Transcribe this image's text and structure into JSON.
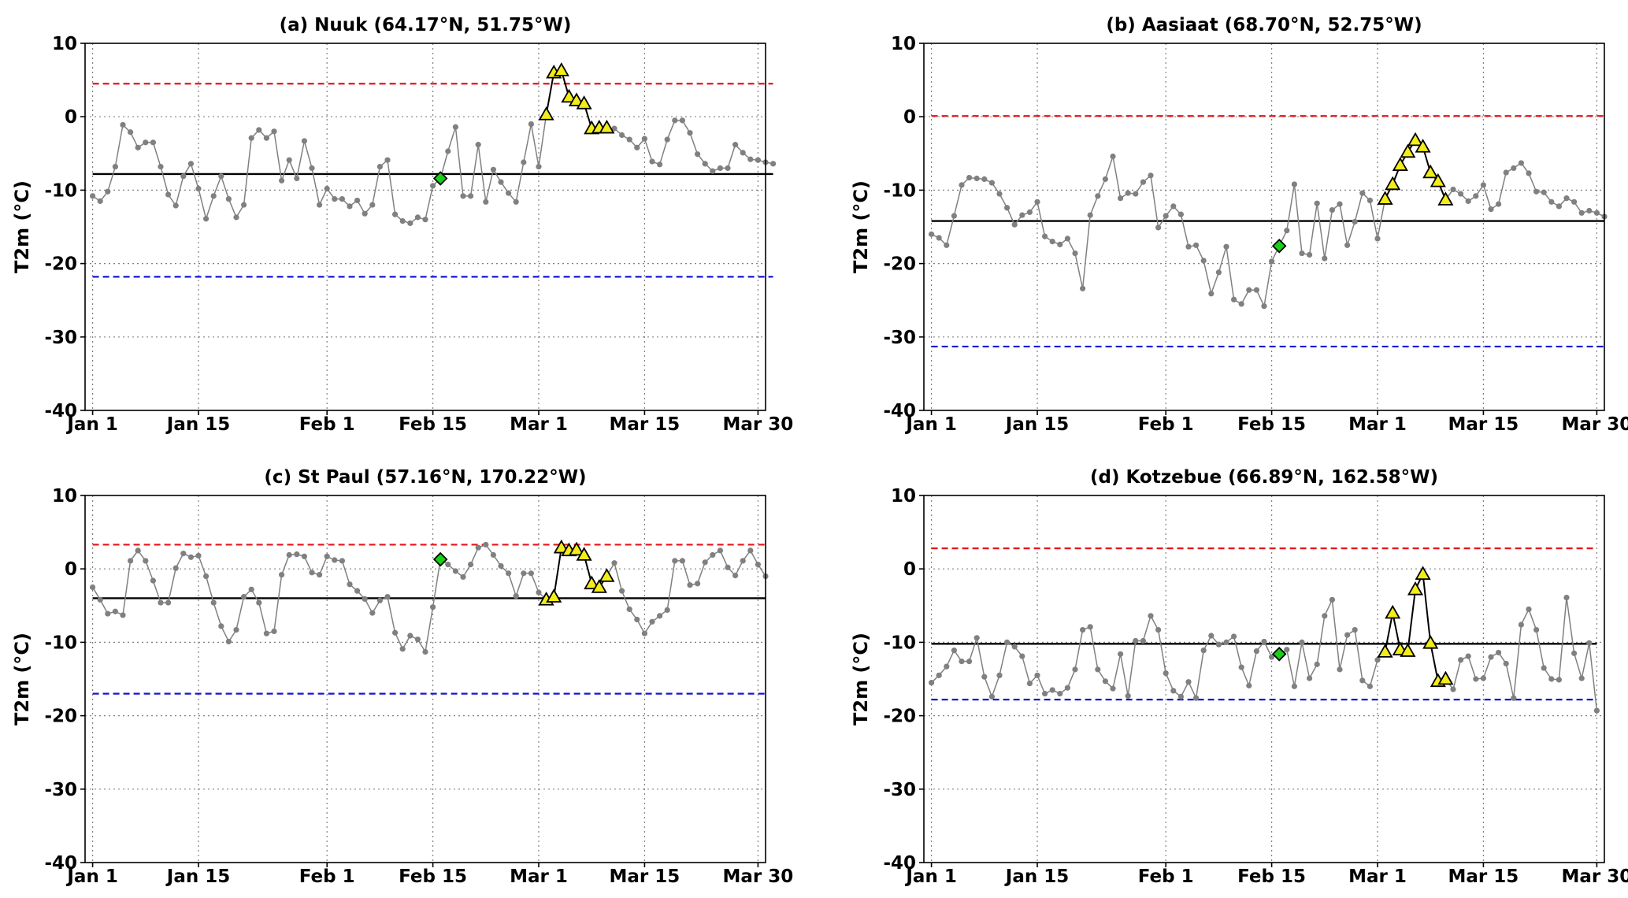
{
  "colors": {
    "series": "#808080",
    "mean": "#000000",
    "upper": "#e8141a",
    "lower": "#1515d6",
    "triangle_fill": "#f2ec1a",
    "diamond_fill": "#19d019",
    "grid": "#808080"
  },
  "chart_data": [
    {
      "type": "line",
      "title": "(a) Nuuk (64.17°N, 51.75°W)",
      "ylabel": "T2m (°C)",
      "ylim": [
        -40,
        10
      ],
      "yticks": [
        10,
        0,
        -10,
        -20,
        -30,
        -40
      ],
      "xlim": [
        0,
        90
      ],
      "xticks": [
        {
          "day": 1,
          "label": "Jan 1"
        },
        {
          "day": 15,
          "label": "Jan 15"
        },
        {
          "day": 32,
          "label": "Feb 1"
        },
        {
          "day": 46,
          "label": "Feb 15"
        },
        {
          "day": 60,
          "label": "Mar 1"
        },
        {
          "day": 74,
          "label": "Mar 15"
        },
        {
          "day": 89,
          "label": "Mar 30"
        }
      ],
      "grid": true,
      "mean": -7.8,
      "upper": 4.5,
      "lower": -21.8,
      "x_start": 1,
      "values": [
        -10.8,
        -11.5,
        -10.2,
        -6.8,
        -1.1,
        -2.1,
        -4.2,
        -3.5,
        -3.5,
        -6.8,
        -10.6,
        -12.1,
        -8.1,
        -6.4,
        -9.8,
        -13.9,
        -10.8,
        -8.1,
        -11.2,
        -13.7,
        -12.0,
        -2.9,
        -1.8,
        -2.9,
        -2.0,
        -8.7,
        -5.9,
        -8.4,
        -3.3,
        -7.0,
        -12.0,
        -9.8,
        -11.2,
        -11.2,
        -12.2,
        -11.4,
        -13.2,
        -12.0,
        -6.8,
        -5.9,
        -13.3,
        -14.2,
        -14.5,
        -13.7,
        -14.0,
        -9.4,
        -8.4,
        -4.7,
        -1.4,
        -10.8,
        -10.8,
        -3.8,
        -11.6,
        -7.2,
        -8.9,
        -10.4,
        -11.6,
        -6.2,
        -1.0,
        -6.8,
        0.3,
        6.0,
        6.3,
        2.7,
        2.2,
        1.8,
        -1.6,
        -1.5,
        -1.5,
        -1.6,
        -2.5,
        -3.1,
        -4.2,
        -3.0,
        -6.1,
        -6.5,
        -3.1,
        -0.5,
        -0.5,
        -2.2,
        -5.1,
        -6.4,
        -7.4,
        -7.0,
        -7.0,
        -3.8,
        -4.9,
        -5.8,
        -5.9,
        -6.2,
        -6.4
      ],
      "triangles": [
        {
          "day": 61,
          "value": 0.3
        },
        {
          "day": 62,
          "value": 6.0
        },
        {
          "day": 63,
          "value": 6.3
        },
        {
          "day": 64,
          "value": 2.7
        },
        {
          "day": 65,
          "value": 2.2
        },
        {
          "day": 66,
          "value": 1.8
        },
        {
          "day": 67,
          "value": -1.6
        },
        {
          "day": 68,
          "value": -1.5
        },
        {
          "day": 69,
          "value": -1.5
        }
      ],
      "diamond": {
        "day": 47,
        "value": -8.4
      }
    },
    {
      "type": "line",
      "title": "(b) Aasiaat (68.70°N, 52.75°W)",
      "ylabel": "T2m (°C)",
      "ylim": [
        -40,
        10
      ],
      "yticks": [
        10,
        0,
        -10,
        -20,
        -30,
        -40
      ],
      "xlim": [
        0,
        90
      ],
      "xticks": [
        {
          "day": 1,
          "label": "Jan 1"
        },
        {
          "day": 15,
          "label": "Jan 15"
        },
        {
          "day": 32,
          "label": "Feb 1"
        },
        {
          "day": 46,
          "label": "Feb 15"
        },
        {
          "day": 60,
          "label": "Mar 1"
        },
        {
          "day": 74,
          "label": "Mar 15"
        },
        {
          "day": 89,
          "label": "Mar 30"
        }
      ],
      "grid": true,
      "mean": -14.2,
      "upper": 0.1,
      "lower": -31.3,
      "x_start": 1,
      "values": [
        -16.0,
        -16.5,
        -17.5,
        -13.5,
        -9.3,
        -8.3,
        -8.4,
        -8.5,
        -9.0,
        -10.5,
        -12.4,
        -14.7,
        -13.4,
        -13.0,
        -11.6,
        -16.3,
        -17.0,
        -17.4,
        -16.6,
        -18.6,
        -23.4,
        -13.4,
        -10.8,
        -8.5,
        -5.4,
        -11.1,
        -10.4,
        -10.5,
        -8.9,
        -8.0,
        -15.1,
        -13.5,
        -12.2,
        -13.3,
        -17.7,
        -17.5,
        -19.6,
        -24.1,
        -21.2,
        -17.7,
        -24.9,
        -25.5,
        -23.6,
        -23.6,
        -25.8,
        -19.7,
        -17.6,
        -15.5,
        -9.2,
        -18.6,
        -18.8,
        -11.8,
        -19.3,
        -12.7,
        -11.9,
        -17.5,
        -14.3,
        -10.4,
        -11.4,
        -16.6,
        -11.2,
        -9.2,
        -6.6,
        -4.8,
        -3.2,
        -4.1,
        -7.6,
        -8.8,
        -11.3,
        -9.9,
        -10.5,
        -11.5,
        -10.8,
        -9.3,
        -12.6,
        -11.9,
        -7.6,
        -7.0,
        -6.3,
        -7.7,
        -10.2,
        -10.3,
        -11.6,
        -12.2,
        -11.1,
        -11.6,
        -13.1,
        -12.8,
        -13.1,
        -13.6
      ],
      "triangles": [
        {
          "day": 61,
          "value": -11.2
        },
        {
          "day": 62,
          "value": -9.2
        },
        {
          "day": 63,
          "value": -6.6
        },
        {
          "day": 64,
          "value": -4.8
        },
        {
          "day": 65,
          "value": -3.2
        },
        {
          "day": 66,
          "value": -4.1
        },
        {
          "day": 67,
          "value": -7.6
        },
        {
          "day": 68,
          "value": -8.8
        },
        {
          "day": 69,
          "value": -11.3
        }
      ],
      "diamond": {
        "day": 47,
        "value": -17.6
      }
    },
    {
      "type": "line",
      "title": "(c) St Paul (57.16°N, 170.22°W)",
      "ylabel": "T2m (°C)",
      "ylim": [
        -40,
        10
      ],
      "yticks": [
        10,
        0,
        -10,
        -20,
        -30,
        -40
      ],
      "xlim": [
        0,
        90
      ],
      "xticks": [
        {
          "day": 1,
          "label": "Jan 1"
        },
        {
          "day": 15,
          "label": "Jan 15"
        },
        {
          "day": 32,
          "label": "Feb 1"
        },
        {
          "day": 46,
          "label": "Feb 15"
        },
        {
          "day": 60,
          "label": "Mar 1"
        },
        {
          "day": 74,
          "label": "Mar 15"
        },
        {
          "day": 89,
          "label": "Mar 30"
        }
      ],
      "grid": true,
      "mean": -4.0,
      "upper": 3.3,
      "lower": -17.0,
      "x_start": 1,
      "values": [
        -2.5,
        -4.2,
        -6.1,
        -5.8,
        -6.3,
        1.1,
        2.5,
        1.1,
        -1.6,
        -4.6,
        -4.6,
        0.1,
        2.1,
        1.6,
        1.8,
        -1.0,
        -4.6,
        -7.8,
        -9.9,
        -8.3,
        -3.8,
        -2.8,
        -4.6,
        -8.8,
        -8.5,
        -0.8,
        1.9,
        2.0,
        1.7,
        -0.5,
        -0.8,
        1.7,
        1.2,
        1.1,
        -2.1,
        -3.0,
        -4.1,
        -6.0,
        -4.3,
        -3.8,
        -8.7,
        -10.9,
        -9.1,
        -9.6,
        -11.3,
        -5.2,
        1.3,
        0.6,
        -0.3,
        -1.1,
        0.6,
        2.9,
        3.3,
        1.9,
        0.4,
        -0.6,
        -3.7,
        -0.6,
        -0.6,
        -3.2,
        -4.2,
        -3.8,
        2.9,
        2.5,
        2.6,
        1.9,
        -2.0,
        -2.5,
        -1.0,
        0.8,
        -3.0,
        -5.5,
        -6.9,
        -8.8,
        -7.2,
        -6.4,
        -5.6,
        1.1,
        1.1,
        -2.2,
        -2.0,
        0.9,
        1.9,
        2.5,
        0.2,
        -0.9,
        1.1,
        2.5,
        0.6,
        -1.0
      ],
      "triangles": [
        {
          "day": 61,
          "value": -4.2
        },
        {
          "day": 62,
          "value": -3.8
        },
        {
          "day": 63,
          "value": 2.9
        },
        {
          "day": 64,
          "value": 2.5
        },
        {
          "day": 65,
          "value": 2.6
        },
        {
          "day": 66,
          "value": 1.9
        },
        {
          "day": 67,
          "value": -2.0
        },
        {
          "day": 68,
          "value": -2.5
        },
        {
          "day": 69,
          "value": -1.0
        }
      ],
      "diamond": {
        "day": 47,
        "value": 1.3
      }
    },
    {
      "type": "line",
      "title": "(d) Kotzebue (66.89°N, 162.58°W)",
      "ylabel": "T2m (°C)",
      "ylim": [
        -40,
        10
      ],
      "yticks": [
        10,
        0,
        -10,
        -20,
        -30,
        -40
      ],
      "xlim": [
        0,
        90
      ],
      "xticks": [
        {
          "day": 1,
          "label": "Jan 1"
        },
        {
          "day": 15,
          "label": "Jan 15"
        },
        {
          "day": 32,
          "label": "Feb 1"
        },
        {
          "day": 46,
          "label": "Feb 15"
        },
        {
          "day": 60,
          "label": "Mar 1"
        },
        {
          "day": 74,
          "label": "Mar 15"
        },
        {
          "day": 89,
          "label": "Mar 30"
        }
      ],
      "grid": true,
      "mean": -10.2,
      "upper": 2.8,
      "lower": -17.8,
      "x_start": 1,
      "values": [
        -15.5,
        -14.5,
        -13.3,
        -11.1,
        -12.6,
        -12.6,
        -9.4,
        -14.7,
        -17.4,
        -14.5,
        -10.0,
        -10.6,
        -11.9,
        -15.6,
        -14.5,
        -17.0,
        -16.5,
        -17.0,
        -16.2,
        -13.7,
        -8.3,
        -7.9,
        -13.7,
        -15.3,
        -16.3,
        -11.6,
        -17.3,
        -9.8,
        -9.8,
        -6.4,
        -8.3,
        -14.2,
        -16.6,
        -17.4,
        -15.4,
        -17.6,
        -11.1,
        -9.1,
        -10.3,
        -10.0,
        -9.2,
        -13.4,
        -15.9,
        -11.2,
        -9.9,
        -12.0,
        -11.6,
        -11.0,
        -16.0,
        -10.0,
        -14.9,
        -13.0,
        -6.4,
        -4.2,
        -13.7,
        -9.0,
        -8.3,
        -15.2,
        -16.0,
        -12.4,
        -11.3,
        -6.0,
        -11.0,
        -11.2,
        -2.8,
        -0.7,
        -10.1,
        -15.3,
        -15.0,
        -16.4,
        -12.4,
        -11.9,
        -15.0,
        -14.9,
        -12.0,
        -11.4,
        -12.9,
        -17.6,
        -7.6,
        -5.5,
        -8.3,
        -13.5,
        -15.0,
        -15.1,
        -3.9,
        -11.5,
        -14.9,
        -10.1,
        -19.3
      ],
      "triangles": [
        {
          "day": 61,
          "value": -11.3
        },
        {
          "day": 62,
          "value": -6.0
        },
        {
          "day": 63,
          "value": -11.0
        },
        {
          "day": 64,
          "value": -11.2
        },
        {
          "day": 65,
          "value": -2.8
        },
        {
          "day": 66,
          "value": -0.7
        },
        {
          "day": 67,
          "value": -10.1
        },
        {
          "day": 68,
          "value": -15.3
        },
        {
          "day": 69,
          "value": -15.0
        }
      ],
      "diamond": {
        "day": 47,
        "value": -11.6
      }
    }
  ]
}
